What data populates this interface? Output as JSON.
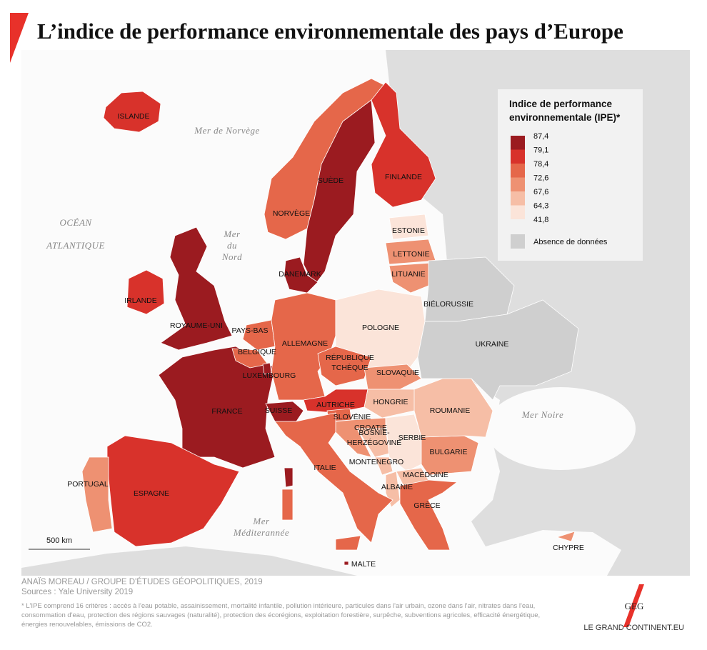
{
  "header": {
    "title": "L’indice de performance environnementale des pays d’Europe"
  },
  "legend": {
    "title": [
      "Indice de performance",
      "environnementale (IPE)*"
    ],
    "breaks": [
      {
        "value": 87.4,
        "label": "87,4"
      },
      {
        "value": 79.1,
        "label": "79,1"
      },
      {
        "value": 78.4,
        "label": "78,4"
      },
      {
        "value": 72.6,
        "label": "72,6"
      },
      {
        "value": 67.6,
        "label": "67,6"
      },
      {
        "value": 64.3,
        "label": "64,3"
      },
      {
        "value": 41.8,
        "label": "41,8"
      }
    ],
    "colors": [
      "#9b1b20",
      "#d8322b",
      "#e5674a",
      "#ee9172",
      "#f6bea6",
      "#fbe4d9"
    ],
    "no_data": {
      "label": "Absence de données",
      "color": "#cfcfcf"
    }
  },
  "countries": [
    {
      "lines": [
        "ISLANDE"
      ],
      "color": "#d8322b"
    },
    {
      "lines": [
        "IRLANDE"
      ],
      "color": "#d8322b"
    },
    {
      "lines": [
        "ROYAUME-UNI"
      ],
      "color": "#9b1b20"
    },
    {
      "lines": [
        "FRANCE"
      ],
      "color": "#9b1b20"
    },
    {
      "lines": [
        "ESPAGNE"
      ],
      "color": "#d8322b"
    },
    {
      "lines": [
        "PORTUGAL"
      ],
      "color": "#ee9172"
    },
    {
      "lines": [
        "NORVÈGE"
      ],
      "color": "#e5674a"
    },
    {
      "lines": [
        "SUÈDE"
      ],
      "color": "#9b1b20"
    },
    {
      "lines": [
        "FINLANDE"
      ],
      "color": "#d8322b"
    },
    {
      "lines": [
        "DANEMARK"
      ],
      "color": "#9b1b20"
    },
    {
      "lines": [
        "PAYS-BAS"
      ],
      "color": "#e5674a"
    },
    {
      "lines": [
        "BELGIQUE"
      ],
      "color": "#e5674a"
    },
    {
      "lines": [
        "LUXEMBOURG"
      ],
      "color": "#9b1b20"
    },
    {
      "lines": [
        "ALLEMAGNE"
      ],
      "color": "#e5674a"
    },
    {
      "lines": [
        "POLOGNE"
      ],
      "color": "#fbe4d9"
    },
    {
      "lines": [
        "RÉPUBLIQUE",
        "TCHÈQUE"
      ],
      "color": "#e5674a"
    },
    {
      "lines": [
        "SLOVAQUIE"
      ],
      "color": "#ee9172"
    },
    {
      "lines": [
        "AUTRICHE"
      ],
      "color": "#d8322b"
    },
    {
      "lines": [
        "SUISSE"
      ],
      "color": "#9b1b20"
    },
    {
      "lines": [
        "HONGRIE"
      ],
      "color": "#f6bea6"
    },
    {
      "lines": [
        "SLOVÉNIE"
      ],
      "color": "#e5674a"
    },
    {
      "lines": [
        "CROATIE"
      ],
      "color": "#ee9172"
    },
    {
      "lines": [
        "BOSNIE-",
        "HERZÉGOVINE"
      ],
      "color": "#f6bea6"
    },
    {
      "lines": [
        "SERBIE"
      ],
      "color": "#fbe4d9"
    },
    {
      "lines": [
        "MONTENEGRO"
      ],
      "color": "#f6bea6"
    },
    {
      "lines": [
        "ALBANIE"
      ],
      "color": "#f6bea6"
    },
    {
      "lines": [
        "MACÉDOINE"
      ],
      "color": "#f6bea6"
    },
    {
      "lines": [
        "GRÈCE"
      ],
      "color": "#e5674a"
    },
    {
      "lines": [
        "BULGARIE"
      ],
      "color": "#ee9172"
    },
    {
      "lines": [
        "ROUMANIE"
      ],
      "color": "#f6bea6"
    },
    {
      "lines": [
        "ITALIE"
      ],
      "color": "#e5674a"
    },
    {
      "lines": [
        "ESTONIE"
      ],
      "color": "#fbe4d9"
    },
    {
      "lines": [
        "LETTONIE"
      ],
      "color": "#ee9172"
    },
    {
      "lines": [
        "LITUANIE"
      ],
      "color": "#ee9172"
    },
    {
      "lines": [
        "BIÉLORUSSIE"
      ],
      "color": "#cfcfcf"
    },
    {
      "lines": [
        "UKRAINE"
      ],
      "color": "#cfcfcf"
    },
    {
      "lines": [
        "CHYPRE"
      ],
      "color": "#ee9172"
    },
    {
      "lines": [
        "MALTE"
      ],
      "color": "#9b1b20"
    }
  ],
  "seas": [
    [
      "Mer de Norvège"
    ],
    [
      "OCÉAN",
      "ATLANTIQUE"
    ],
    [
      "Mer",
      "du",
      "Nord"
    ],
    [
      "Mer",
      "Méditerannée"
    ],
    [
      "Mer Noire"
    ]
  ],
  "scale": "500 km",
  "credits": {
    "author": "ANAÏS MOREAU / GROUPE D'ÉTUDES GÉOPOLITIQUES, 2019",
    "sources": "Sources : Yale University 2019",
    "footnote": "* L'IPE comprend 16 critères : accès à l'eau potable, assainissement, mortalité infantile, pollution intérieure, particules dans l'air urbain, ozone dans l'air, nitrates dans l'eau, consommation d'eau, protection des régions sauvages (naturalité), protection des écorégions, exploitation forestière, surpêche, subventions agricoles, efficacité énergétique, énergies renouvelables, émissions de CO2."
  },
  "brand": {
    "logo": "GEG",
    "site": "LE GRAND CONTINENT.EU"
  }
}
